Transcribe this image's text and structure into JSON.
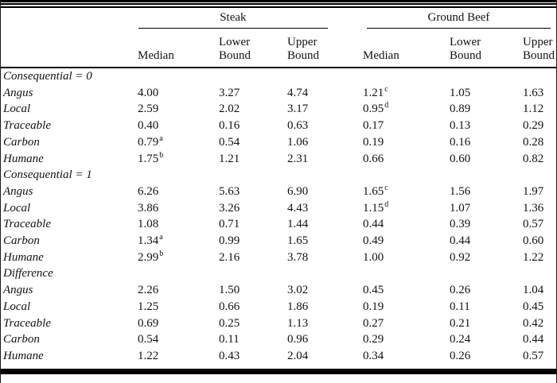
{
  "figure": {
    "colors": {
      "text": "#121212",
      "rule": "#000000",
      "background": "#ffffff"
    },
    "groups": [
      {
        "label": "Steak"
      },
      {
        "label": "Ground Beef"
      }
    ],
    "sub_headers": [
      "Median",
      "Lower\nBound",
      "Upper\nBound",
      "Median",
      "Lower\nBound",
      "Upper\nBound"
    ],
    "sections": [
      {
        "header": "Consequential = 0",
        "rows": [
          {
            "label": "Angus",
            "cells": [
              {
                "v": "4.00"
              },
              {
                "v": "3.27"
              },
              {
                "v": "4.74"
              },
              {
                "v": "1.21",
                "sup": "c"
              },
              {
                "v": "1.05"
              },
              {
                "v": "1.63"
              }
            ]
          },
          {
            "label": "Local",
            "cells": [
              {
                "v": "2.59"
              },
              {
                "v": "2.02"
              },
              {
                "v": "3.17"
              },
              {
                "v": "0.95",
                "sup": "d"
              },
              {
                "v": "0.89"
              },
              {
                "v": "1.12"
              }
            ]
          },
          {
            "label": "Traceable",
            "cells": [
              {
                "v": "0.40"
              },
              {
                "v": "0.16"
              },
              {
                "v": "0.63"
              },
              {
                "v": "0.17"
              },
              {
                "v": "0.13"
              },
              {
                "v": "0.29"
              }
            ]
          },
          {
            "label": "Carbon",
            "cells": [
              {
                "v": "0.79",
                "sup": "a"
              },
              {
                "v": "0.54"
              },
              {
                "v": "1.06"
              },
              {
                "v": "0.19"
              },
              {
                "v": "0.16"
              },
              {
                "v": "0.28"
              }
            ]
          },
          {
            "label": "Humane",
            "cells": [
              {
                "v": "1.75",
                "sup": "b"
              },
              {
                "v": "1.21"
              },
              {
                "v": "2.31"
              },
              {
                "v": "0.66"
              },
              {
                "v": "0.60"
              },
              {
                "v": "0.82"
              }
            ]
          }
        ]
      },
      {
        "header": "Consequential = 1",
        "rows": [
          {
            "label": "Angus",
            "cells": [
              {
                "v": "6.26"
              },
              {
                "v": "5.63"
              },
              {
                "v": "6.90"
              },
              {
                "v": "1.65",
                "sup": "c"
              },
              {
                "v": "1.56"
              },
              {
                "v": "1.97"
              }
            ]
          },
          {
            "label": "Local",
            "cells": [
              {
                "v": "3.86"
              },
              {
                "v": "3.26"
              },
              {
                "v": "4.43"
              },
              {
                "v": "1.15",
                "sup": "d"
              },
              {
                "v": "1.07"
              },
              {
                "v": "1.36"
              }
            ]
          },
          {
            "label": "Traceable",
            "cells": [
              {
                "v": "1.08"
              },
              {
                "v": "0.71"
              },
              {
                "v": "1.44"
              },
              {
                "v": "0.44"
              },
              {
                "v": "0.39"
              },
              {
                "v": "0.57"
              }
            ]
          },
          {
            "label": "Carbon",
            "cells": [
              {
                "v": "1.34",
                "sup": "a"
              },
              {
                "v": "0.99"
              },
              {
                "v": "1.65"
              },
              {
                "v": "0.49"
              },
              {
                "v": "0.44"
              },
              {
                "v": "0.60"
              }
            ]
          },
          {
            "label": "Humane",
            "cells": [
              {
                "v": "2.99",
                "sup": "b"
              },
              {
                "v": "2.16"
              },
              {
                "v": "3.78"
              },
              {
                "v": "1.00"
              },
              {
                "v": "0.92"
              },
              {
                "v": "1.22"
              }
            ]
          }
        ]
      },
      {
        "header": "Difference",
        "rows": [
          {
            "label": "Angus",
            "cells": [
              {
                "v": "2.26"
              },
              {
                "v": "1.50"
              },
              {
                "v": "3.02"
              },
              {
                "v": "0.45"
              },
              {
                "v": "0.26"
              },
              {
                "v": "1.04"
              }
            ]
          },
          {
            "label": "Local",
            "cells": [
              {
                "v": "1.25"
              },
              {
                "v": "0.66"
              },
              {
                "v": "1.86"
              },
              {
                "v": "0.19"
              },
              {
                "v": "0.11"
              },
              {
                "v": "0.45"
              }
            ]
          },
          {
            "label": "Traceable",
            "cells": [
              {
                "v": "0.69"
              },
              {
                "v": "0.25"
              },
              {
                "v": "1.13"
              },
              {
                "v": "0.27"
              },
              {
                "v": "0.21"
              },
              {
                "v": "0.42"
              }
            ]
          },
          {
            "label": "Carbon",
            "cells": [
              {
                "v": "0.54"
              },
              {
                "v": "0.11"
              },
              {
                "v": "0.96"
              },
              {
                "v": "0.29"
              },
              {
                "v": "0.24"
              },
              {
                "v": "0.44"
              }
            ]
          },
          {
            "label": "Humane",
            "cells": [
              {
                "v": "1.22"
              },
              {
                "v": "0.43"
              },
              {
                "v": "2.04"
              },
              {
                "v": "0.34"
              },
              {
                "v": "0.26"
              },
              {
                "v": "0.57"
              }
            ]
          }
        ]
      }
    ]
  }
}
